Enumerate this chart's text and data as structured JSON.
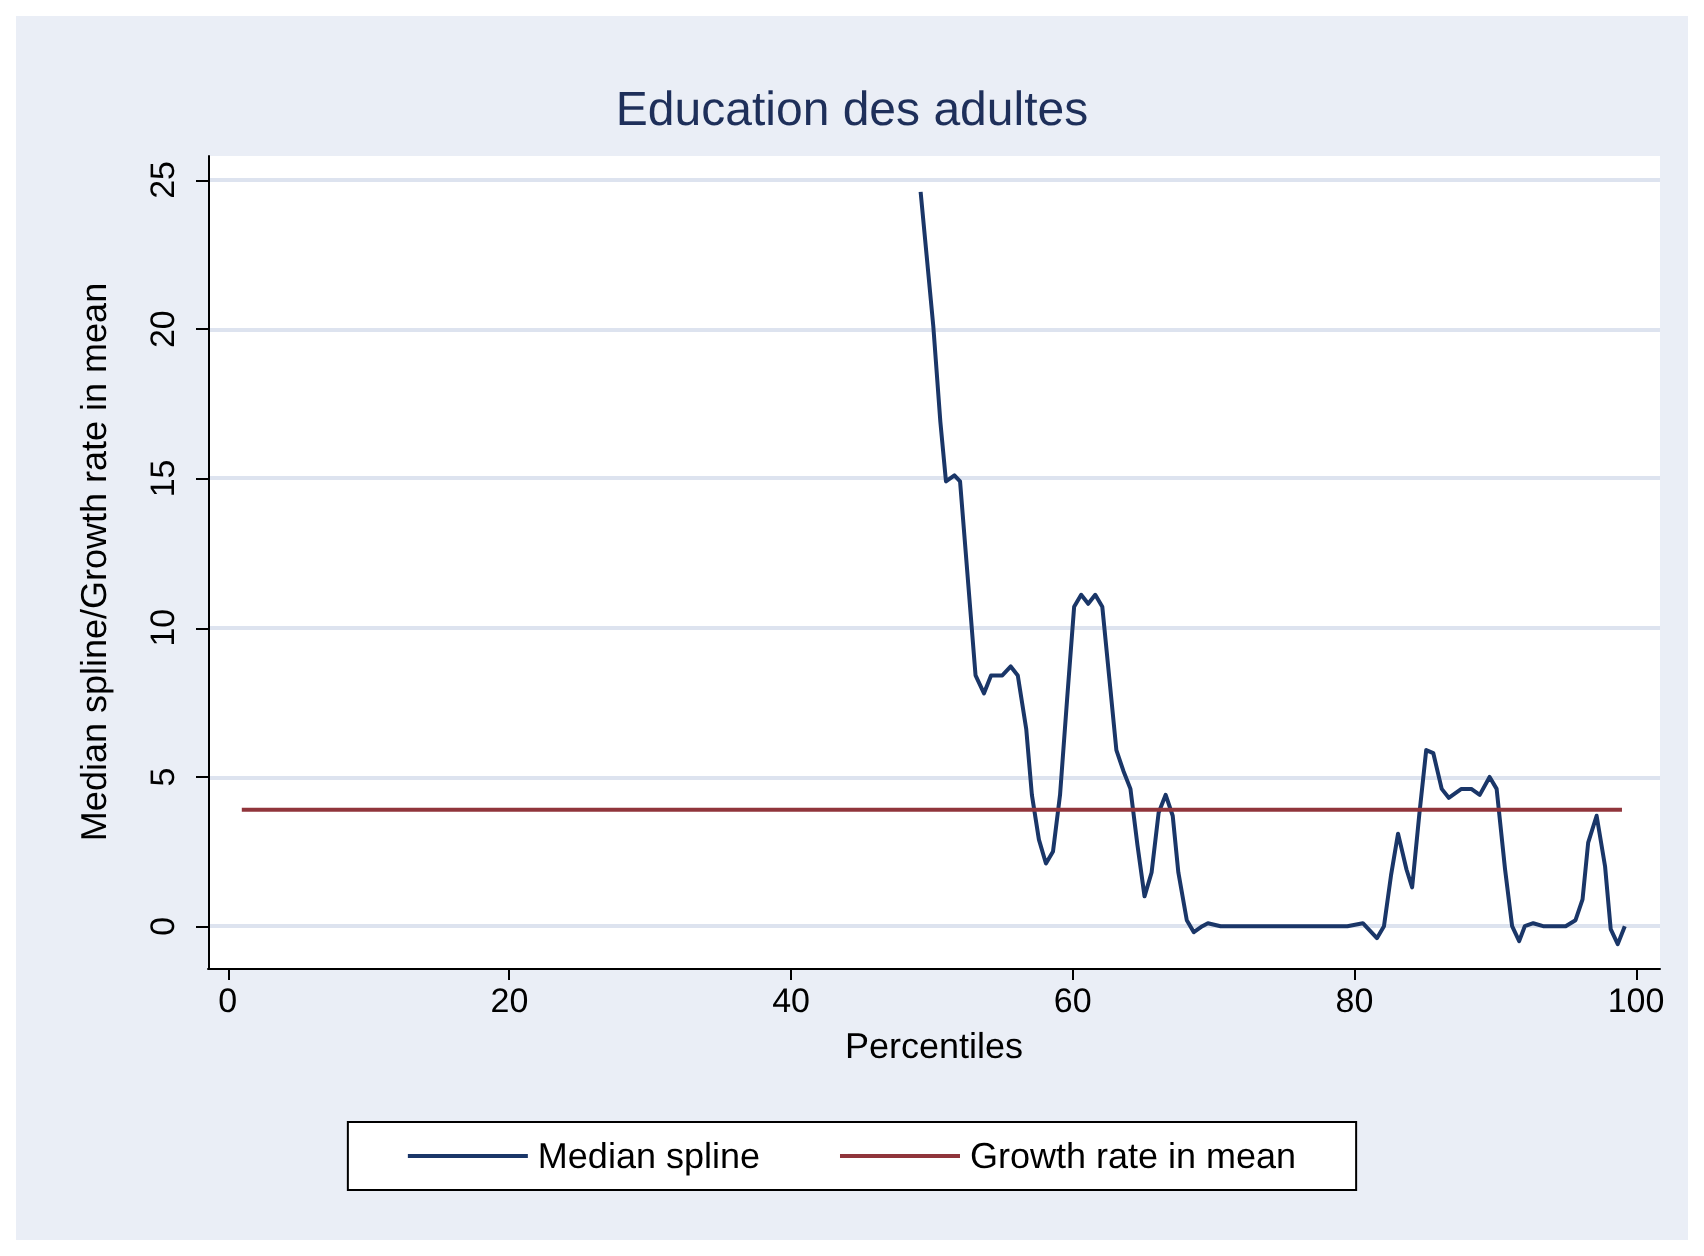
{
  "chart_data": {
    "type": "line",
    "title": "Education des adultes",
    "xlabel": "Percentiles",
    "ylabel": "Median spline/Growth rate in mean",
    "xlim": [
      -1.4,
      101.7
    ],
    "ylim": [
      -1.4,
      25.8
    ],
    "xticks": [
      0,
      20,
      40,
      60,
      80,
      100
    ],
    "yticks": [
      0,
      5,
      10,
      15,
      20,
      25
    ],
    "grid": "y",
    "legend": "bottom",
    "marker": "none",
    "line_style": "solid",
    "series": [
      {
        "name": "Median spline",
        "color": "#1a3668",
        "x": [
          49.2,
          50.1,
          50.6,
          51.0,
          51.6,
          52.0,
          53.1,
          53.7,
          54.2,
          55.0,
          55.6,
          56.1,
          56.7,
          57.1,
          57.6,
          58.1,
          58.6,
          59.1,
          59.6,
          60.1,
          60.6,
          61.1,
          61.6,
          62.1,
          62.6,
          63.1,
          63.6,
          64.1,
          64.6,
          65.1,
          65.6,
          66.1,
          66.6,
          67.1,
          67.5,
          68.1,
          68.6,
          69.2,
          69.6,
          70.5,
          79.5,
          80.6,
          81.6,
          82.1,
          82.6,
          83.1,
          83.7,
          84.1,
          84.6,
          85.1,
          85.6,
          86.2,
          86.7,
          87.6,
          88.3,
          88.9,
          89.6,
          90.1,
          90.7,
          91.2,
          91.7,
          92.1,
          92.7,
          93.4,
          95.0,
          95.7,
          96.2,
          96.6,
          97.2,
          97.8,
          98.2,
          98.7,
          99.2
        ],
        "values": [
          24.6,
          20.1,
          16.9,
          14.9,
          15.1,
          14.9,
          8.4,
          7.8,
          8.4,
          8.4,
          8.7,
          8.4,
          6.6,
          4.4,
          2.9,
          2.1,
          2.5,
          4.4,
          7.6,
          10.7,
          11.1,
          10.8,
          11.1,
          10.7,
          8.3,
          5.9,
          5.2,
          4.6,
          2.7,
          1.0,
          1.8,
          3.8,
          4.4,
          3.7,
          1.8,
          0.2,
          -0.2,
          0,
          0.1,
          0,
          0,
          0.1,
          -0.4,
          0,
          1.7,
          3.1,
          1.9,
          1.3,
          3.7,
          5.9,
          5.8,
          4.6,
          4.3,
          4.6,
          4.6,
          4.4,
          5.0,
          4.6,
          1.9,
          0,
          -0.5,
          0,
          0.1,
          0,
          0,
          0.2,
          0.9,
          2.8,
          3.7,
          2.0,
          -0.1,
          -0.6,
          0
        ]
      },
      {
        "name": "Growth rate in mean",
        "color": "#90353b",
        "x": [
          1,
          99
        ],
        "values": [
          3.9,
          3.9
        ]
      }
    ]
  }
}
